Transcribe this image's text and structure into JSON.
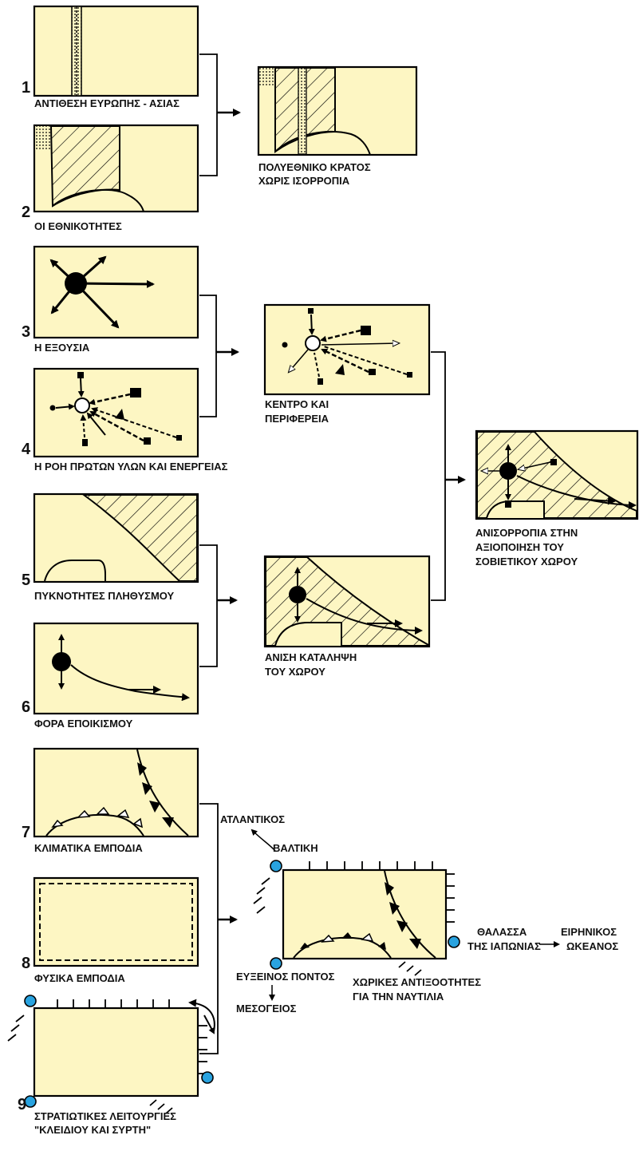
{
  "panels": {
    "p1": {
      "number": "1",
      "caption": "ΑΝΤΙΘΕΣΗ ΕΥΡΩΠΗΣ - ΑΣΙΑΣ"
    },
    "p2": {
      "number": "2",
      "caption": "ΟΙ ΕΘΝΙΚΟΤΗΤΕΣ"
    },
    "p3": {
      "number": "3",
      "caption": "Η ΕΞΟΥΣΙΑ"
    },
    "p4": {
      "number": "4",
      "caption": "Η ΡΟΗ ΠΡΩΤΩΝ ΥΛΩΝ ΚΑΙ ΕΝΕΡΓΕΙΑΣ"
    },
    "p5": {
      "number": "5",
      "caption": "ΠΥΚΝΟΤΗΤΕΣ ΠΛΗΘΥΣΜΟΥ"
    },
    "p6": {
      "number": "6",
      "caption": "ΦΟΡΑ ΕΠΟΙΚΙΣΜΟΥ"
    },
    "p7": {
      "number": "7",
      "caption": "ΚΛΙΜΑΤΙΚΑ ΕΜΠΟΔΙΑ"
    },
    "p8": {
      "number": "8",
      "caption": "ΦΥΣΙΚΑ ΕΜΠΟΔΙΑ"
    },
    "p9": {
      "number": "9",
      "caption_line1": "ΣΤΡΑΤΙΩΤΙΚΕΣ ΛΕΙΤΟΥΡΓΙΕΣ",
      "caption_line2": "\"ΚΛΕΙΔΙΟΥ ΚΑΙ ΣΥΡΤΗ\""
    }
  },
  "results": {
    "r12": {
      "line1": "ΠΟΛΥΕΘΝΙΚΟ ΚΡΑΤΟΣ",
      "line2": "ΧΩΡΙΣ ΙΣΟΡΡΟΠΙΑ"
    },
    "r34": {
      "line1": "ΚΕΝΤΡΟ ΚΑΙ",
      "line2": "ΠΕΡΙΦΕΡΕΙΑ"
    },
    "r56": {
      "line1": "ΑΝΙΣΗ ΚΑΤΑΛΗΨΗ",
      "line2": "ΤΟΥ ΧΩΡΟΥ"
    },
    "final": {
      "line1": "ΑΝΙΣΟΡΡΟΠΙΑ ΣΤΗΝ",
      "line2": "ΑΞΙΟΠΟΙΗΣΗ ΤΟΥ",
      "line3": "ΣΟΒΙΕΤΙΚΟΥ ΧΩΡΟΥ"
    }
  },
  "maritime": {
    "atlantic": "ΑΤΛΑΝΤΙΚΟΣ",
    "baltic": "ΒΑΛΤΙΚΗ",
    "black_sea": "ΕΥΞΕΙΝΟΣ ΠΟΝΤΟΣ",
    "mediterranean": "ΜΕΣΟΓΕΙΟΣ",
    "sea_of_japan_1": "ΘΑΛΑΣΣΑ",
    "sea_of_japan_2": "ΤΗΣ ΙΑΠΩΝΙΑΣ",
    "pacific_1": "ΕΙΡΗΝΙΚΟΣ",
    "pacific_2": "ΩΚΕΑΝΟΣ",
    "caption_1": "ΧΩΡΙΚΕΣ ΑΝΤΙΞΟΟΤΗΤΕΣ",
    "caption_2": "ΓΙΑ ΤΗΝ ΝΑΥΤΙΛΙΑ"
  },
  "colors": {
    "panel_fill": "#fdf6c3",
    "port_node": "#29a3e0"
  }
}
